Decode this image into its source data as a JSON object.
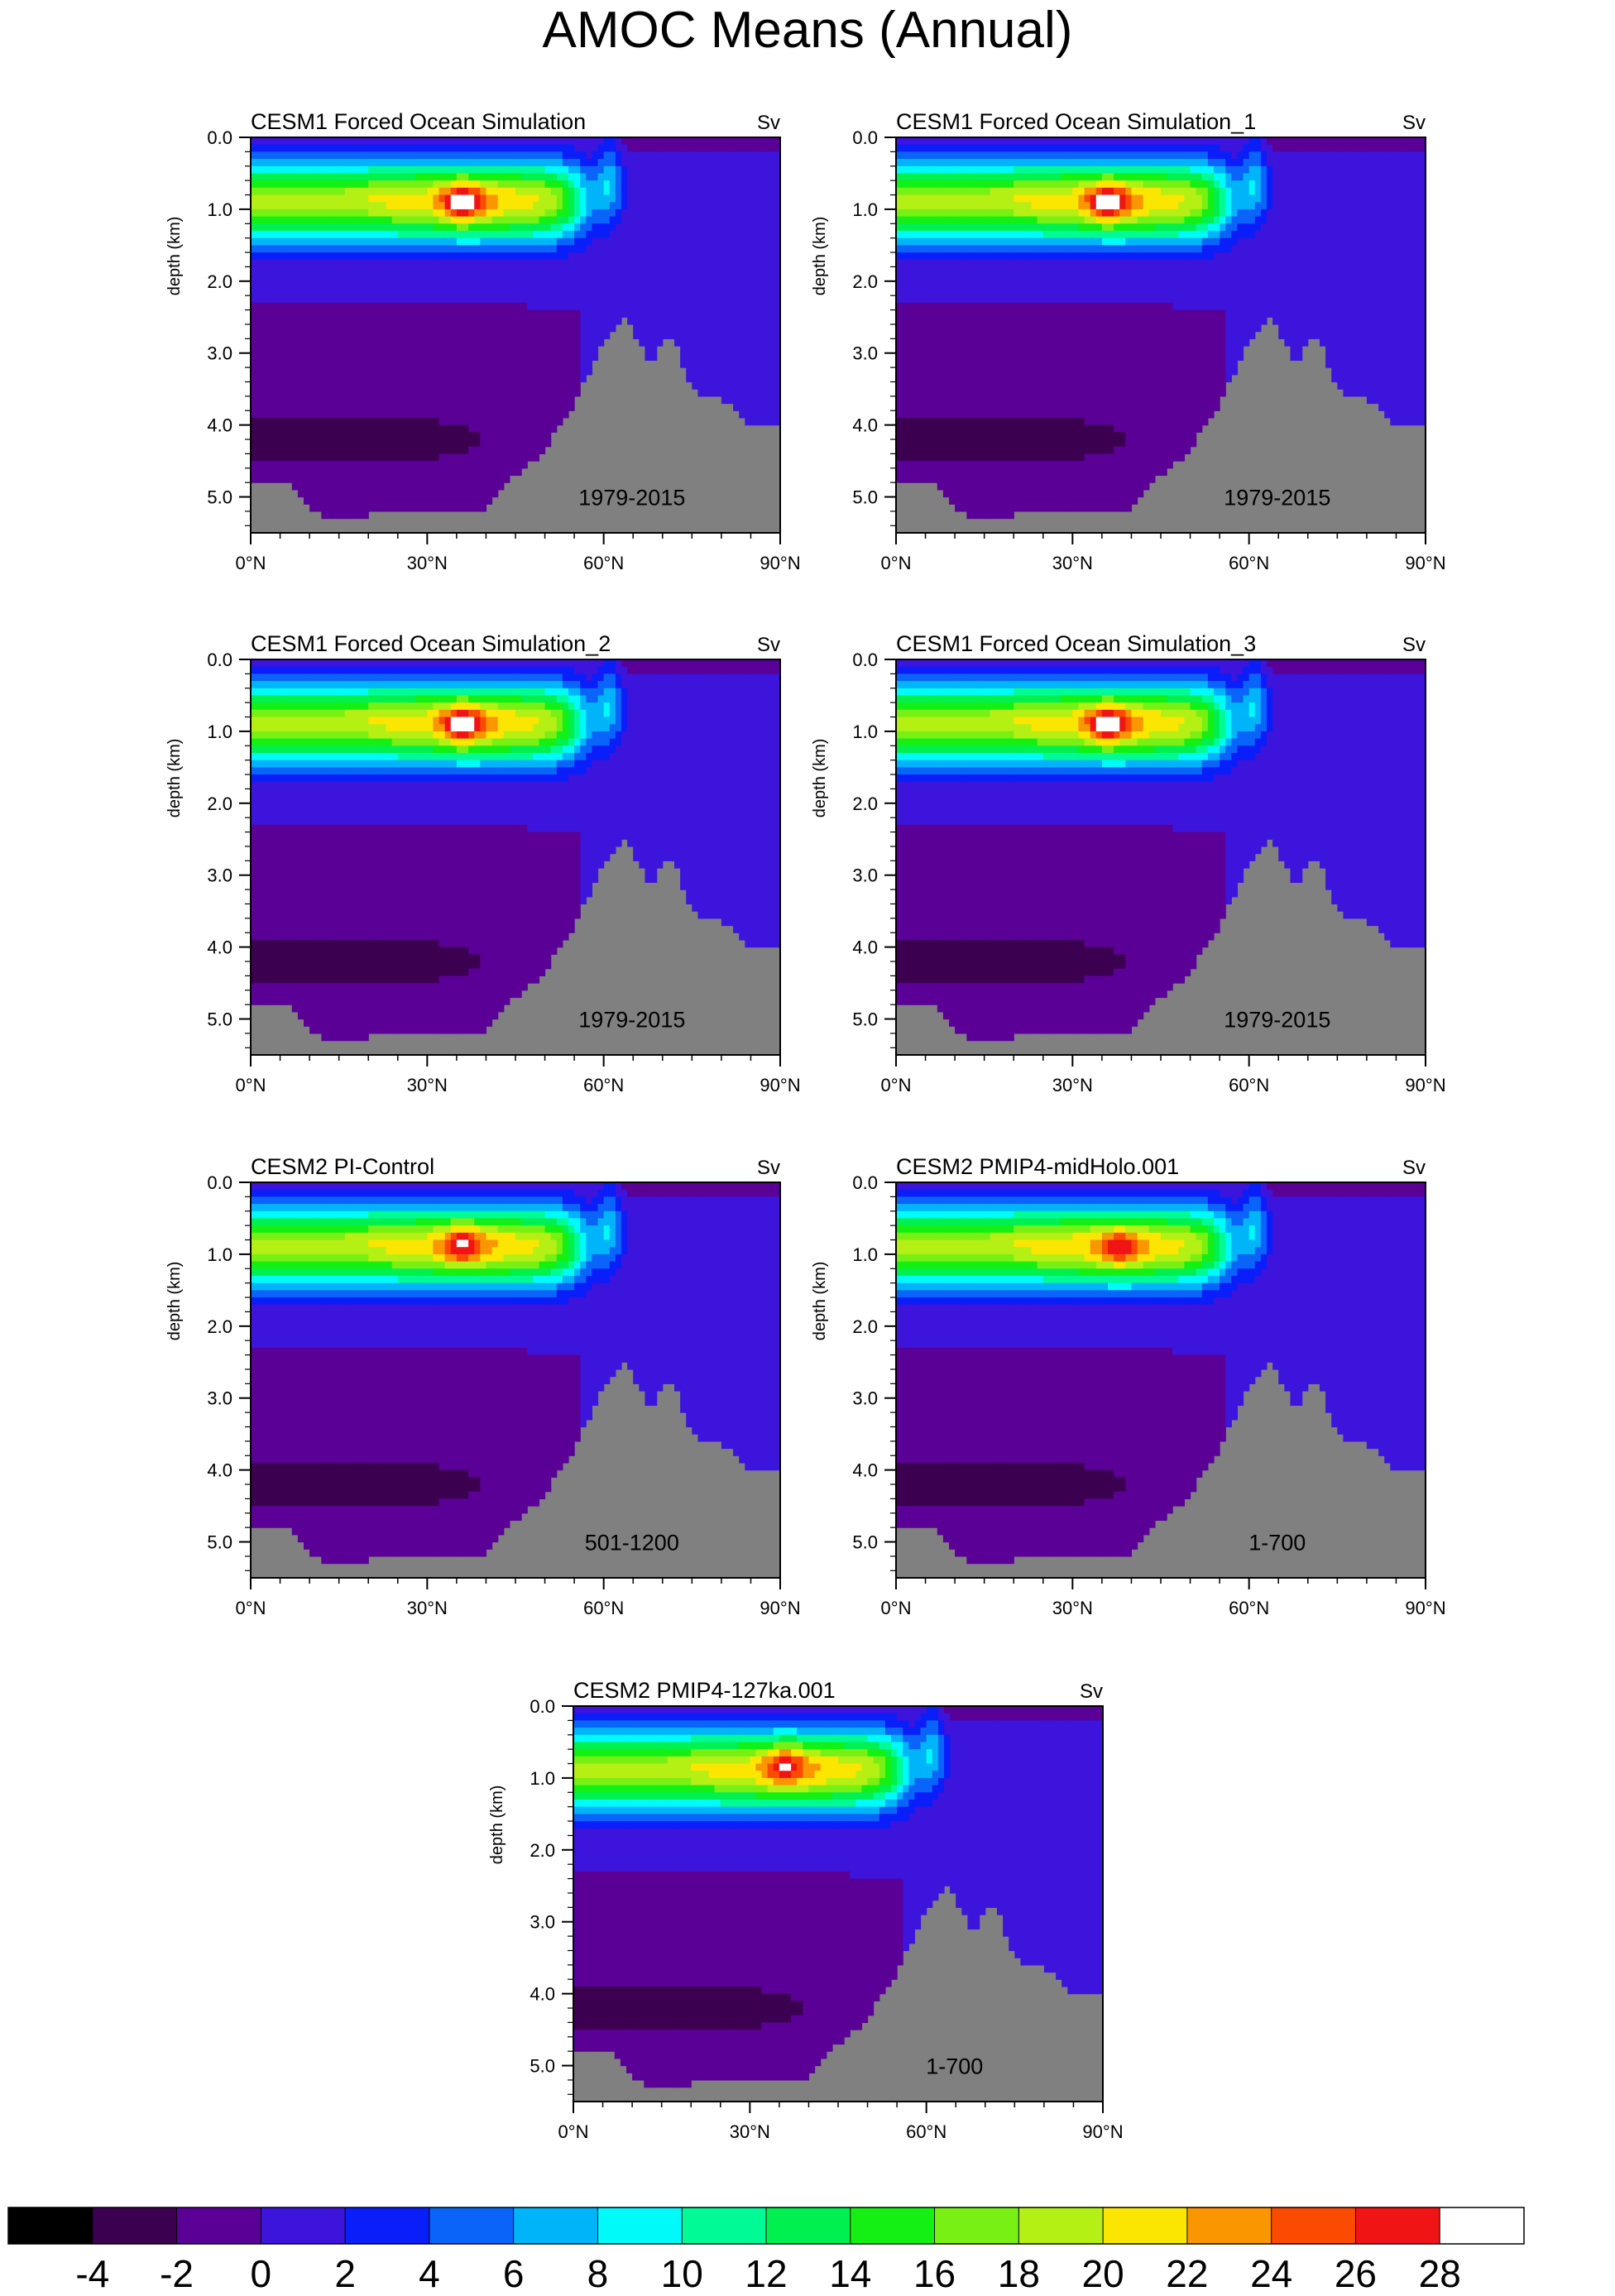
{
  "title": "AMOC Means (Annual)",
  "chart_data": {
    "type": "heatmap",
    "units": "Sv",
    "x_axis": {
      "ticks": [
        "0°N",
        "30°N",
        "60°N",
        "90°N"
      ],
      "range_deg": [
        0,
        90
      ]
    },
    "y_axis": {
      "label": "depth (km)",
      "ticks": [
        "0.0",
        "1.0",
        "2.0",
        "3.0",
        "4.0",
        "5.0"
      ],
      "range_km": [
        0,
        5.5
      ]
    },
    "panels": [
      {
        "title": "CESM1 Forced Ocean Simulation",
        "units": "Sv",
        "period": "1979-2015",
        "max_sv": 27,
        "max_lat": 36,
        "max_depth_km": 0.9
      },
      {
        "title": "CESM1 Forced Ocean Simulation_1",
        "units": "Sv",
        "period": "1979-2015",
        "max_sv": 27,
        "max_lat": 36,
        "max_depth_km": 0.9
      },
      {
        "title": "CESM1 Forced Ocean Simulation_2",
        "units": "Sv",
        "period": "1979-2015",
        "max_sv": 27,
        "max_lat": 36,
        "max_depth_km": 0.9
      },
      {
        "title": "CESM1 Forced Ocean Simulation_3",
        "units": "Sv",
        "period": "1979-2015",
        "max_sv": 27,
        "max_lat": 36,
        "max_depth_km": 0.9
      },
      {
        "title": "CESM2 PI-Control",
        "units": "Sv",
        "period": "501-1200",
        "max_sv": 25,
        "max_lat": 36,
        "max_depth_km": 0.85
      },
      {
        "title": "CESM2 PMIP4-midHolo.001",
        "units": "Sv",
        "period": "1-700",
        "max_sv": 24,
        "max_lat": 38,
        "max_depth_km": 0.9
      },
      {
        "title": "CESM2 PMIP4-127ka.001",
        "units": "Sv",
        "period": "1-700",
        "max_sv": 25,
        "max_lat": 36,
        "max_depth_km": 0.8
      }
    ],
    "colorbar": {
      "labels": [
        "-4",
        "-2",
        "0",
        "2",
        "4",
        "6",
        "8",
        "10",
        "12",
        "14",
        "16",
        "18",
        "20",
        "22",
        "24",
        "26",
        "28"
      ],
      "colors": [
        "#000000",
        "#3c0050",
        "#5a0096",
        "#3c14dc",
        "#0a1efa",
        "#0a64fa",
        "#00b4fa",
        "#00fafa",
        "#00fa96",
        "#00f050",
        "#14f014",
        "#78f014",
        "#b4f014",
        "#fae600",
        "#fa9600",
        "#fa4b00",
        "#f01414",
        "#ffffff"
      ]
    }
  }
}
